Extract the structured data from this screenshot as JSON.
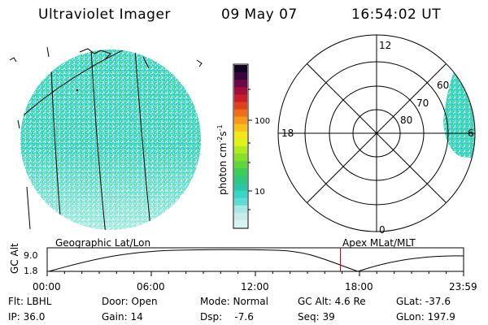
{
  "header": {
    "instrument": "Ultraviolet Imager",
    "date": "09 May 07",
    "time": "16:54:02 UT"
  },
  "colorbar": {
    "label": "photon cm-2s-1",
    "label_main": "photon cm",
    "label_exp1": "-2",
    "label_mid": "s",
    "label_exp2": "-1",
    "ticks": [
      "100",
      "10"
    ],
    "colors": [
      "#d9f2f2",
      "#c8ecec",
      "#a8e6e6",
      "#5fdcd6",
      "#36d6c8",
      "#29c7a6",
      "#2ec97e",
      "#3ccf55",
      "#5fd63a",
      "#86df2b",
      "#b3ea1f",
      "#dff21a",
      "#f5e51a",
      "#f7c21a",
      "#f59a1a",
      "#ef6d1a",
      "#e0401e",
      "#c81e2a",
      "#a0103a",
      "#6a0a48",
      "#38063a",
      "#140320"
    ]
  },
  "polar_plot": {
    "mlt_labels": [
      "12",
      "18",
      "6",
      "0"
    ],
    "lat_labels": [
      "60",
      "70",
      "80"
    ]
  },
  "timeline": {
    "ylabel": "GC Alt",
    "yticks": [
      "9.0",
      "1.8"
    ],
    "left_title": "Geographic Lat/Lon",
    "right_title": "Apex MLat/MLT",
    "xticks": [
      "00:00",
      "06:00",
      "12:00",
      "18:00",
      "23:59"
    ],
    "current_hour": 16.9
  },
  "info": {
    "row1": [
      "Flt: LBHL",
      "Door: Open",
      "Mode: Normal",
      "GC Alt: 4.6 Re",
      "GLat: -37.6"
    ],
    "row2": [
      "IP: 36.0",
      "Gain: 14",
      "Dsp:    -7.6",
      "Seq: 39",
      "GLon: 197.9"
    ]
  },
  "colors": {
    "auroral_oval": "#4fd9cf",
    "pale_fill": "#d6f1ef",
    "marker": "#cc0000"
  }
}
